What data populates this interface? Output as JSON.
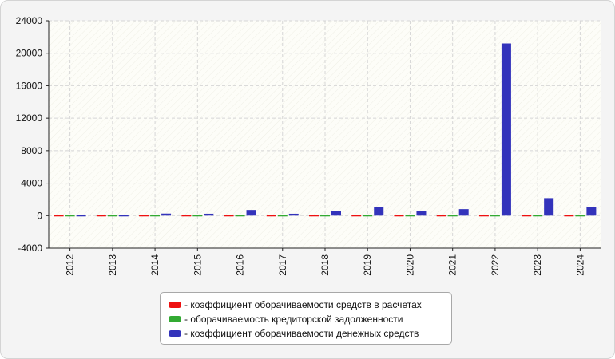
{
  "chart_data": {
    "type": "bar",
    "title": "",
    "xlabel": "",
    "ylabel": "",
    "categories": [
      "2012",
      "2013",
      "2014",
      "2015",
      "2016",
      "2017",
      "2018",
      "2019",
      "2020",
      "2021",
      "2022",
      "2023",
      "2024"
    ],
    "ylim": [
      -4000,
      24000
    ],
    "yticks": [
      "24000",
      "20000",
      "16000",
      "12000",
      "8000",
      "4000",
      "0",
      "-4000"
    ],
    "ytick_values": [
      24000,
      20000,
      16000,
      12000,
      8000,
      4000,
      0,
      -4000
    ],
    "grid": true,
    "legend_position": "bottom",
    "series": [
      {
        "name": "- коэффициент оборачиваемости средств в расчетах",
        "color": "#ee1111",
        "values": [
          60,
          60,
          60,
          60,
          60,
          60,
          60,
          60,
          60,
          60,
          60,
          60,
          60
        ]
      },
      {
        "name": "- оборачиваемость кредиторской задолженности",
        "color": "#33aa33",
        "values": [
          60,
          60,
          60,
          60,
          60,
          60,
          60,
          60,
          60,
          60,
          60,
          60,
          60
        ]
      },
      {
        "name": "- коэффициент оборачиваемости денежных средств",
        "color": "#3333bb",
        "values": [
          100,
          130,
          250,
          230,
          700,
          230,
          600,
          1050,
          600,
          800,
          21200,
          2150,
          1050
        ]
      }
    ]
  }
}
